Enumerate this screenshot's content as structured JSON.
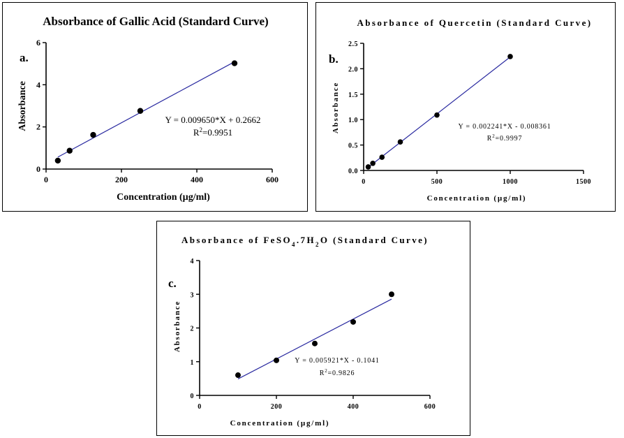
{
  "chart_data": [
    {
      "type": "scatter",
      "label": "a.",
      "title": "Absorbance of Gallic Acid (Standard Curve)",
      "xlabel": "Concentration (µg/ml)",
      "ylabel": "Absorbance",
      "xlim": [
        0,
        600
      ],
      "ylim": [
        0,
        6
      ],
      "xticks": [
        0,
        200,
        400,
        600
      ],
      "yticks": [
        0,
        2,
        4,
        6
      ],
      "series": [
        {
          "x": [
            31.25,
            62.5,
            125,
            250,
            500
          ],
          "y": [
            0.4,
            0.87,
            1.62,
            2.76,
            5.02
          ]
        }
      ],
      "fit": {
        "slope": 0.00965,
        "intercept": 0.2662,
        "x_range": [
          31.25,
          500
        ]
      },
      "equation": "Y = 0.009650*X + 0.2662",
      "r2_prefix": "R",
      "r2_exp": "2",
      "r2_value": "=0.9951",
      "colors": {
        "fit_line": "#2a2aa0",
        "points": "#000000"
      }
    },
    {
      "type": "scatter",
      "label": "b.",
      "title": "Absorbance of Quercetin (Standard Curve)",
      "xlabel": "Concentration (µg/ml)",
      "ylabel": "Absorbance",
      "xlim": [
        0,
        1500
      ],
      "ylim": [
        0,
        2.5
      ],
      "xticks": [
        0,
        500,
        1000,
        1500
      ],
      "yticks": [
        0.0,
        0.5,
        1.0,
        1.5,
        2.0,
        2.5
      ],
      "ytick_labels": [
        "0.0",
        "0.5",
        "1.0",
        "1.5",
        "2.0",
        "2.5"
      ],
      "series": [
        {
          "x": [
            31.25,
            62.5,
            125,
            250,
            500,
            1000
          ],
          "y": [
            0.07,
            0.14,
            0.26,
            0.56,
            1.09,
            2.24
          ]
        }
      ],
      "fit": {
        "slope": 0.002241,
        "intercept": -0.008361,
        "x_range": [
          31.25,
          1000
        ]
      },
      "equation": "Y = 0.002241*X - 0.008361",
      "r2_prefix": "R",
      "r2_exp": "2",
      "r2_value": "=0.9997",
      "colors": {
        "fit_line": "#2a2aa0",
        "points": "#000000"
      }
    },
    {
      "type": "scatter",
      "label": "c.",
      "title_parts": [
        "Absorbance of FeSO",
        "4",
        ".7H",
        "2",
        "O (Standard Curve)"
      ],
      "xlabel": "Concentration (µg/ml)",
      "ylabel": "Absorbance",
      "xlim": [
        0,
        600
      ],
      "ylim": [
        0,
        4
      ],
      "xticks": [
        0,
        200,
        400,
        600
      ],
      "yticks": [
        0,
        1,
        2,
        3,
        4
      ],
      "series": [
        {
          "x": [
            100,
            200,
            300,
            400,
            500
          ],
          "y": [
            0.6,
            1.04,
            1.54,
            2.18,
            3.0
          ]
        }
      ],
      "fit": {
        "slope": 0.005921,
        "intercept": -0.1041,
        "x_range": [
          100,
          500
        ]
      },
      "equation": "Y = 0.005921*X - 0.1041",
      "r2_prefix": "R",
      "r2_exp": "2",
      "r2_value": "=0.9826",
      "colors": {
        "fit_line": "#2a2aa0",
        "points": "#000000"
      }
    }
  ]
}
